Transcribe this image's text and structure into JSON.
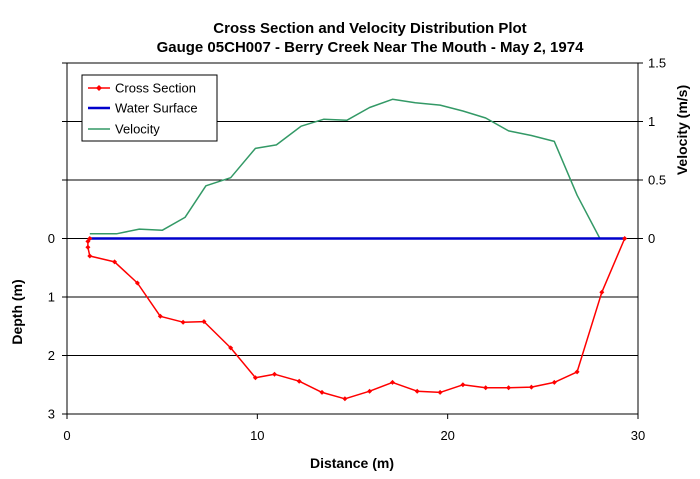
{
  "chart_data": {
    "type": "line",
    "title": "Cross Section and Velocity Distribution Plot",
    "subtitle": "Gauge 05CH007 - Berry Creek Near The Mouth - May 2, 1974",
    "xlabel": "Distance (m)",
    "ylabel_left": "Depth (m)",
    "ylabel_right": "Velocity (m/s)",
    "xlim": [
      0,
      30
    ],
    "x_ticks": [
      "0",
      "10",
      "20",
      "30"
    ],
    "left_ticks": [
      "0",
      "1",
      "2",
      "3"
    ],
    "right_ticks": [
      "1.5",
      "1",
      "0.5",
      "0"
    ],
    "grid": "horizontal",
    "legend_position": "top-left",
    "legend": [
      "Cross Section",
      "Water Surface",
      "Velocity"
    ],
    "colors": {
      "cross_section": "#ff0000",
      "water_surface": "#0000cc",
      "velocity": "#339966"
    },
    "depth_axis": {
      "min": -3,
      "max": 3,
      "inverted": true
    },
    "velocity_axis": {
      "min": -1.5,
      "max": 1.5
    },
    "series": [
      {
        "name": "Cross Section",
        "axis": "depth",
        "markers": true,
        "points": [
          [
            1.2,
            0
          ],
          [
            1.1,
            0.05
          ],
          [
            1.1,
            0.15
          ],
          [
            1.2,
            0.3
          ],
          [
            2.5,
            0.4
          ],
          [
            3.7,
            0.76
          ],
          [
            4.9,
            1.33
          ],
          [
            6.1,
            1.43
          ],
          [
            7.2,
            1.42
          ],
          [
            8.6,
            1.87
          ],
          [
            9.9,
            2.38
          ],
          [
            10.9,
            2.32
          ],
          [
            12.2,
            2.44
          ],
          [
            13.4,
            2.63
          ],
          [
            14.6,
            2.74
          ],
          [
            15.9,
            2.61
          ],
          [
            17.1,
            2.46
          ],
          [
            18.4,
            2.61
          ],
          [
            19.6,
            2.63
          ],
          [
            20.8,
            2.5
          ],
          [
            22.0,
            2.55
          ],
          [
            23.2,
            2.55
          ],
          [
            24.4,
            2.54
          ],
          [
            25.6,
            2.46
          ],
          [
            26.8,
            2.28
          ],
          [
            28.1,
            0.92
          ],
          [
            29.3,
            0
          ]
        ]
      },
      {
        "name": "Water Surface",
        "axis": "depth",
        "markers": false,
        "points": [
          [
            1.2,
            0
          ],
          [
            29.3,
            0
          ]
        ]
      },
      {
        "name": "Velocity",
        "axis": "velocity",
        "markers": false,
        "points": [
          [
            1.2,
            0.04
          ],
          [
            2.6,
            0.04
          ],
          [
            3.8,
            0.08
          ],
          [
            5.0,
            0.07
          ],
          [
            6.2,
            0.18
          ],
          [
            7.3,
            0.45
          ],
          [
            8.6,
            0.52
          ],
          [
            9.9,
            0.77
          ],
          [
            11.0,
            0.8
          ],
          [
            12.3,
            0.96
          ],
          [
            13.5,
            1.02
          ],
          [
            14.7,
            1.01
          ],
          [
            15.9,
            1.12
          ],
          [
            17.1,
            1.19
          ],
          [
            18.3,
            1.16
          ],
          [
            19.6,
            1.14
          ],
          [
            20.8,
            1.09
          ],
          [
            22.0,
            1.03
          ],
          [
            23.2,
            0.92
          ],
          [
            24.4,
            0.88
          ],
          [
            25.6,
            0.83
          ],
          [
            26.8,
            0.37
          ],
          [
            28.0,
            0.0
          ],
          [
            28.5,
            0.0
          ]
        ]
      }
    ]
  }
}
